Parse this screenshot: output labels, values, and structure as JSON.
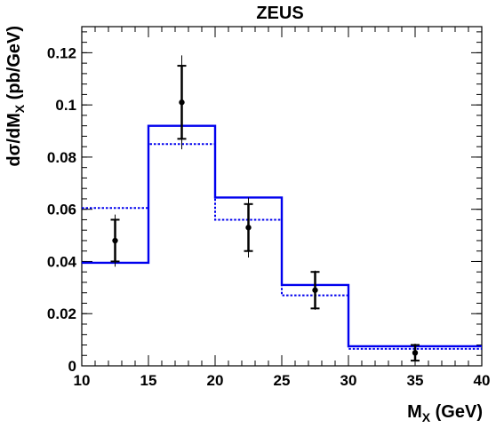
{
  "chart_data": {
    "type": "histogram",
    "title": "ZEUS",
    "xlabel": {
      "main": "M",
      "sub": "X",
      "tail": " (GeV)"
    },
    "ylabel": {
      "main": "dσ/dM",
      "sub": "X",
      "tail": " (pb/GeV)"
    },
    "xlim": [
      10,
      40
    ],
    "ylim": [
      0,
      0.13
    ],
    "x_ticks": [
      10,
      15,
      20,
      25,
      30,
      35,
      40
    ],
    "x_tick_labels": [
      "10",
      "15",
      "20",
      "25",
      "30",
      "35",
      "40"
    ],
    "y_ticks": [
      0,
      0.02,
      0.04,
      0.06,
      0.08,
      0.1,
      0.12
    ],
    "y_tick_labels": [
      "0",
      "0.02",
      "0.04",
      "0.06",
      "0.08",
      "0.1",
      "0.12"
    ],
    "bin_edges": [
      10,
      15,
      20,
      25,
      30,
      40
    ],
    "series": [
      {
        "style": "solid",
        "values": [
          0.0395,
          0.092,
          0.0645,
          0.031,
          0.0075
        ]
      },
      {
        "style": "dotted",
        "values": [
          0.0605,
          0.085,
          0.056,
          0.027,
          0.0065
        ]
      },
      {
        "style": "points",
        "x": [
          12.5,
          17.5,
          22.5,
          27.5,
          35
        ],
        "y": [
          0.048,
          0.101,
          0.053,
          0.029,
          0.005
        ],
        "stat_err": [
          0.008,
          0.014,
          0.009,
          0.007,
          0.003
        ],
        "total_err": [
          0.01,
          0.018,
          0.0115,
          0.0075,
          0.0035
        ]
      }
    ],
    "grid": false,
    "colors": {
      "solid": "#0000ee",
      "dotted": "#0000ee",
      "points": "#000000"
    }
  }
}
